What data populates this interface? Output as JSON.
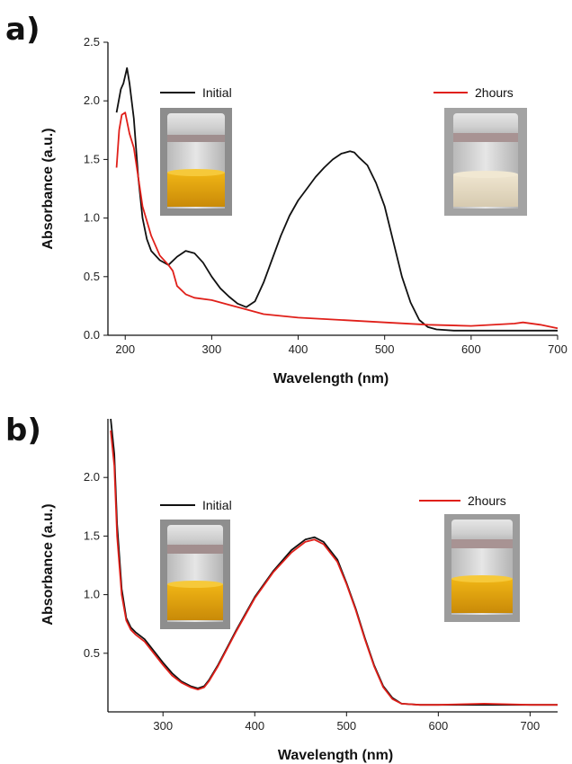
{
  "chart_data": [
    {
      "type": "line",
      "panel_label": "a)",
      "xlabel": "Wavelength (nm)",
      "ylabel": "Absorbance (a.u.)",
      "xlim": [
        180,
        700
      ],
      "ylim": [
        0,
        2.5
      ],
      "xticks": [
        200,
        300,
        400,
        500,
        600,
        700
      ],
      "yticks": [
        0.0,
        0.5,
        1.0,
        1.5,
        2.0,
        2.5
      ],
      "ytick_labels": [
        "0.0",
        "0.5",
        "1.0",
        "1.5",
        "2.0",
        "2.5"
      ],
      "series": [
        {
          "name": "Initial",
          "color": "#111111",
          "x": [
            190,
            195,
            198,
            202,
            205,
            210,
            215,
            220,
            225,
            230,
            240,
            250,
            260,
            270,
            280,
            290,
            300,
            310,
            320,
            330,
            340,
            350,
            360,
            370,
            380,
            390,
            400,
            410,
            420,
            430,
            440,
            450,
            460,
            465,
            470,
            480,
            490,
            500,
            510,
            520,
            530,
            540,
            550,
            560,
            580,
            600,
            650,
            700
          ],
          "y": [
            1.9,
            2.1,
            2.15,
            2.28,
            2.15,
            1.85,
            1.35,
            1.0,
            0.82,
            0.72,
            0.64,
            0.6,
            0.67,
            0.72,
            0.7,
            0.62,
            0.5,
            0.4,
            0.33,
            0.27,
            0.24,
            0.29,
            0.45,
            0.65,
            0.85,
            1.02,
            1.15,
            1.25,
            1.35,
            1.43,
            1.5,
            1.55,
            1.57,
            1.56,
            1.52,
            1.45,
            1.3,
            1.1,
            0.8,
            0.5,
            0.28,
            0.13,
            0.07,
            0.05,
            0.04,
            0.04,
            0.04,
            0.04
          ]
        },
        {
          "name": "2hours",
          "color": "#e0201a",
          "x": [
            190,
            193,
            196,
            200,
            205,
            210,
            215,
            220,
            230,
            240,
            250,
            255,
            260,
            270,
            280,
            300,
            320,
            340,
            360,
            400,
            450,
            500,
            550,
            600,
            650,
            660,
            680,
            700
          ],
          "y": [
            1.43,
            1.75,
            1.88,
            1.9,
            1.72,
            1.6,
            1.35,
            1.1,
            0.85,
            0.68,
            0.6,
            0.55,
            0.42,
            0.35,
            0.32,
            0.3,
            0.26,
            0.22,
            0.18,
            0.15,
            0.13,
            0.11,
            0.09,
            0.08,
            0.1,
            0.11,
            0.09,
            0.06
          ]
        }
      ],
      "legend": "top",
      "grid": false
    },
    {
      "type": "line",
      "panel_label": "b)",
      "xlabel": "Wavelength (nm)",
      "ylabel": "Absorbance (a.u.)",
      "xlim": [
        240,
        730
      ],
      "ylim": [
        0.0,
        2.5
      ],
      "xticks": [
        300,
        400,
        500,
        600,
        700
      ],
      "yticks": [
        0.5,
        1.0,
        1.5,
        2.0
      ],
      "ytick_labels": [
        "0.5",
        "1.0",
        "1.5",
        "2.0"
      ],
      "series": [
        {
          "name": "Initial",
          "color": "#111111",
          "x": [
            243,
            247,
            250,
            255,
            260,
            265,
            270,
            280,
            290,
            300,
            310,
            320,
            330,
            338,
            345,
            350,
            360,
            380,
            400,
            420,
            440,
            455,
            465,
            475,
            490,
            500,
            510,
            520,
            530,
            540,
            550,
            560,
            580,
            600,
            650,
            700,
            730
          ],
          "y": [
            2.5,
            2.2,
            1.6,
            1.05,
            0.8,
            0.72,
            0.68,
            0.62,
            0.52,
            0.42,
            0.33,
            0.26,
            0.22,
            0.2,
            0.22,
            0.27,
            0.4,
            0.7,
            0.98,
            1.2,
            1.38,
            1.47,
            1.49,
            1.45,
            1.3,
            1.1,
            0.88,
            0.63,
            0.4,
            0.22,
            0.12,
            0.07,
            0.06,
            0.06,
            0.06,
            0.06,
            0.06
          ]
        },
        {
          "name": "2hours",
          "color": "#e0201a",
          "x": [
            243,
            247,
            250,
            255,
            260,
            265,
            270,
            280,
            290,
            300,
            310,
            320,
            330,
            338,
            345,
            350,
            360,
            380,
            400,
            420,
            440,
            455,
            465,
            475,
            490,
            500,
            510,
            520,
            530,
            540,
            550,
            560,
            580,
            600,
            650,
            700,
            730
          ],
          "y": [
            2.4,
            2.1,
            1.5,
            1.0,
            0.78,
            0.7,
            0.66,
            0.6,
            0.5,
            0.4,
            0.31,
            0.25,
            0.21,
            0.19,
            0.21,
            0.26,
            0.39,
            0.69,
            0.97,
            1.19,
            1.36,
            1.45,
            1.47,
            1.43,
            1.28,
            1.09,
            0.87,
            0.62,
            0.39,
            0.21,
            0.11,
            0.07,
            0.06,
            0.06,
            0.07,
            0.06,
            0.06
          ]
        }
      ],
      "legend": "top",
      "grid": false
    }
  ]
}
